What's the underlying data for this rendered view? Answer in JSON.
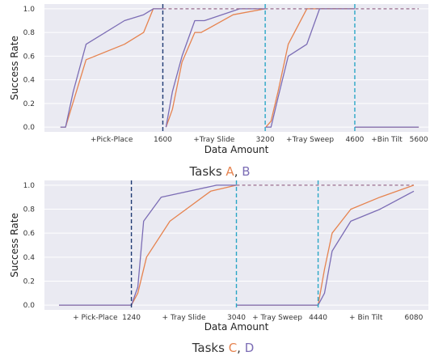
{
  "colors": {
    "bg": "#eaeaf2",
    "grid": "#ffffff",
    "orange": "#e6834f",
    "purple": "#7c6db5",
    "dashed_target": "#9b6e8e",
    "vline_dark": "#1f3a73",
    "vline_cyan": "#2aa6c6"
  },
  "chart_data": [
    {
      "type": "line",
      "xlabel": "Data Amount",
      "ylabel": "Success Rate",
      "xlim": [
        -250,
        5750
      ],
      "ylim": [
        -0.04,
        1.04
      ],
      "yticks": [
        "0.0",
        "0.2",
        "0.4",
        "0.6",
        "0.8",
        "1.0"
      ],
      "xtick_labels": [
        {
          "x": 800,
          "label": "+Pick-Place"
        },
        {
          "x": 1600,
          "label": "1600"
        },
        {
          "x": 2400,
          "label": "+Tray Slide"
        },
        {
          "x": 3200,
          "label": "3200"
        },
        {
          "x": 3900,
          "label": "+Tray Sweep"
        },
        {
          "x": 4600,
          "label": "4600"
        },
        {
          "x": 5100,
          "label": "+Bin Tilt"
        },
        {
          "x": 5600,
          "label": "5600"
        }
      ],
      "vlines": [
        {
          "x": 1600,
          "color": "vline_dark"
        },
        {
          "x": 3200,
          "color": "vline_cyan"
        },
        {
          "x": 4600,
          "color": "vline_cyan"
        }
      ],
      "series": [
        {
          "color": "orange",
          "x": [
            0,
            80,
            400,
            1000,
            1300,
            1450,
            1600
          ],
          "y": [
            0,
            0,
            0.57,
            0.7,
            0.8,
            1.0,
            1.0
          ]
        },
        {
          "color": "purple",
          "x": [
            0,
            80,
            200,
            400,
            1000,
            1300,
            1450,
            1600
          ],
          "y": [
            0,
            0,
            0.3,
            0.7,
            0.9,
            0.95,
            1.0,
            1.0
          ]
        },
        {
          "color": "orange",
          "x": [
            1650,
            1750,
            1900,
            2100,
            2200,
            2700,
            3200
          ],
          "y": [
            0,
            0.15,
            0.55,
            0.8,
            0.8,
            0.95,
            1.0
          ]
        },
        {
          "color": "purple",
          "x": [
            1650,
            1750,
            1900,
            2100,
            2250,
            2800,
            3200
          ],
          "y": [
            0,
            0.3,
            0.6,
            0.9,
            0.9,
            1.0,
            1.0
          ]
        },
        {
          "color": "orange",
          "x": [
            3210,
            3290,
            3400,
            3560,
            3850,
            4600
          ],
          "y": [
            0,
            0.05,
            0.3,
            0.7,
            1.0,
            1.0
          ]
        },
        {
          "color": "purple",
          "x": [
            3210,
            3290,
            3400,
            3560,
            3850,
            4050,
            4600
          ],
          "y": [
            0,
            0,
            0.25,
            0.6,
            0.7,
            1.0,
            1.0
          ]
        },
        {
          "color": "orange",
          "x": [
            4600,
            5600
          ],
          "y": [
            0,
            0
          ]
        },
        {
          "color": "purple",
          "x": [
            4600,
            5600
          ],
          "y": [
            0,
            0
          ]
        },
        {
          "color": "dashed_target",
          "dashed": true,
          "x": [
            1600,
            5600
          ],
          "y": [
            1.0,
            1.0
          ]
        }
      ]
    },
    {
      "type": "line",
      "xlabel": "Data Amount",
      "ylabel": "Success Rate",
      "xlim": [
        -250,
        6330
      ],
      "ylim": [
        -0.04,
        1.04
      ],
      "yticks": [
        "0.0",
        "0.2",
        "0.4",
        "0.6",
        "0.8",
        "1.0"
      ],
      "xtick_labels": [
        {
          "x": 620,
          "label": "+ Pick-Place"
        },
        {
          "x": 1240,
          "label": "1240"
        },
        {
          "x": 2140,
          "label": "+ Tray Slide"
        },
        {
          "x": 3040,
          "label": "3040"
        },
        {
          "x": 3740,
          "label": "+ Tray Sweep"
        },
        {
          "x": 4440,
          "label": "4440"
        },
        {
          "x": 5260,
          "label": "+ Bin Tilt"
        },
        {
          "x": 6080,
          "label": "6080"
        }
      ],
      "vlines": [
        {
          "x": 1240,
          "color": "vline_dark"
        },
        {
          "x": 3040,
          "color": "vline_cyan"
        },
        {
          "x": 4440,
          "color": "vline_cyan"
        }
      ],
      "series": [
        {
          "color": "orange",
          "x": [
            0,
            1240,
            1350,
            1500,
            1900,
            2600,
            3040
          ],
          "y": [
            0,
            0,
            0.1,
            0.4,
            0.7,
            0.95,
            1.0
          ]
        },
        {
          "color": "purple",
          "x": [
            0,
            1240,
            1350,
            1450,
            1750,
            2700,
            3040
          ],
          "y": [
            0,
            0,
            0.15,
            0.7,
            0.9,
            1.0,
            1.0
          ]
        },
        {
          "color": "dashed_target",
          "dashed": true,
          "x": [
            3040,
            6080
          ],
          "y": [
            1.0,
            1.0
          ]
        },
        {
          "color": "orange",
          "x": [
            3040,
            4440,
            4550,
            4680,
            5000,
            5500,
            6080
          ],
          "y": [
            0,
            0,
            0.3,
            0.6,
            0.8,
            0.9,
            1.0
          ]
        },
        {
          "color": "purple",
          "x": [
            3040,
            4440,
            4550,
            4680,
            5000,
            5500,
            6080
          ],
          "y": [
            0,
            0,
            0.1,
            0.45,
            0.7,
            0.8,
            0.95
          ]
        }
      ]
    }
  ],
  "captions": [
    {
      "prefix": "Tasks ",
      "first": "A",
      "sep": ", ",
      "second": "B"
    },
    {
      "prefix": "Tasks ",
      "first": "C",
      "sep": ", ",
      "second": "D"
    }
  ]
}
